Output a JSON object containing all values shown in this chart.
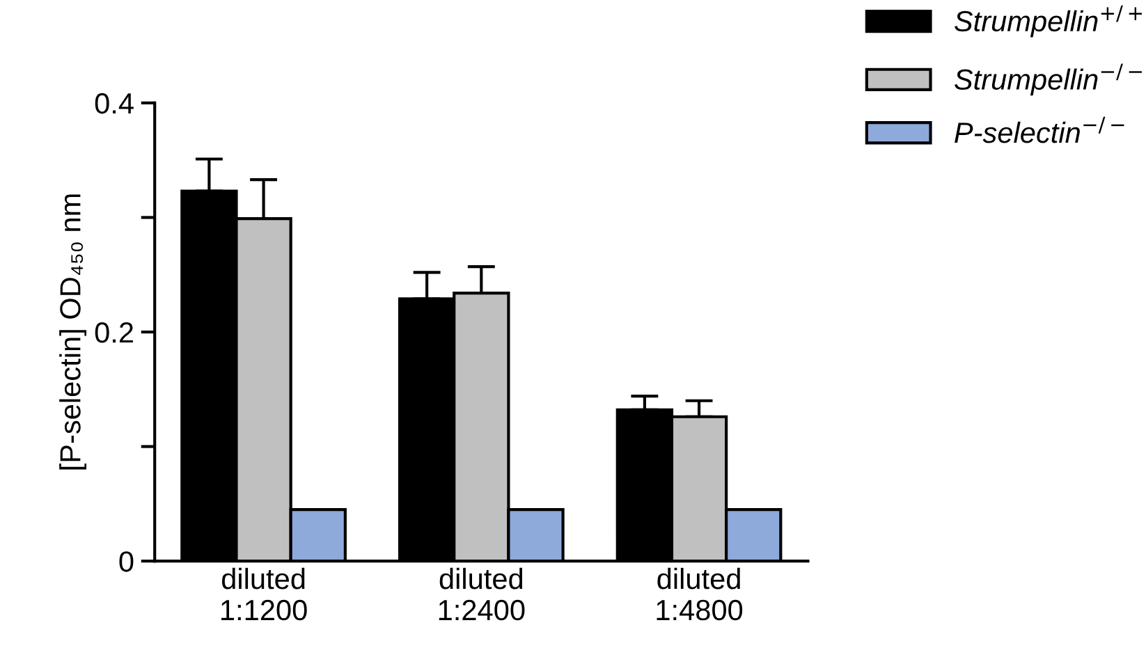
{
  "chart_data": {
    "type": "bar",
    "ylabel": "[P-selectin] OD₄₅₀ nm",
    "categories": [
      "diluted\n1:1200",
      "diluted\n1:2400",
      "diluted\n1:4800"
    ],
    "series": [
      {
        "name": "Strumpellin$^{+/+}$",
        "color": "#000000",
        "values": [
          0.323,
          0.229,
          0.132
        ],
        "errors": [
          [
            0.323,
            0.351
          ],
          [
            0.229,
            0.252
          ],
          [
            0.132,
            0.144
          ]
        ]
      },
      {
        "name": "Strumpellin$^{−/−}$",
        "color": "#c0c0c0",
        "values": [
          0.299,
          0.234,
          0.126
        ],
        "errors": [
          [
            0.299,
            0.333
          ],
          [
            0.234,
            0.257
          ],
          [
            0.126,
            0.14
          ]
        ]
      },
      {
        "name": "P-selectin$^{−/−}$",
        "color": "#8eaadb",
        "values": [
          0.045,
          0.045,
          0.045
        ]
      }
    ],
    "ylim": [
      0,
      0.4
    ],
    "yticks": [
      0,
      {
        "value": 0.1,
        "label": null
      },
      0.2,
      {
        "value": 0.3,
        "label": null
      },
      0.4
    ],
    "grid": false,
    "legend": "top right"
  }
}
